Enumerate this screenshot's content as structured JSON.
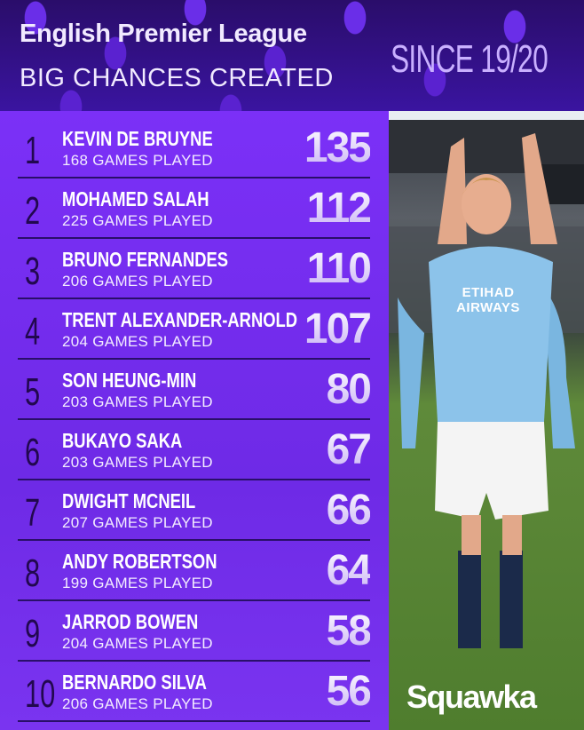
{
  "header": {
    "title": "English Premier League",
    "subtitle": "BIG CHANCES CREATED",
    "since": "SINCE 19/20"
  },
  "rows": [
    {
      "rank": "1",
      "name": "KEVIN DE BRUYNE",
      "games": "168 GAMES PLAYED",
      "value": "135"
    },
    {
      "rank": "2",
      "name": "MOHAMED SALAH",
      "games": "225 GAMES PLAYED",
      "value": "112"
    },
    {
      "rank": "3",
      "name": "BRUNO FERNANDES",
      "games": "206 GAMES PLAYED",
      "value": "110"
    },
    {
      "rank": "4",
      "name": "TRENT ALEXANDER-ARNOLD",
      "games": "204 GAMES PLAYED",
      "value": "107"
    },
    {
      "rank": "5",
      "name": "SON HEUNG-MIN",
      "games": "203 GAMES PLAYED",
      "value": "80"
    },
    {
      "rank": "6",
      "name": "BUKAYO SAKA",
      "games": "203 GAMES PLAYED",
      "value": "67"
    },
    {
      "rank": "7",
      "name": "DWIGHT MCNEIL",
      "games": "207 GAMES PLAYED",
      "value": "66"
    },
    {
      "rank": "8",
      "name": "ANDY ROBERTSON",
      "games": "199 GAMES PLAYED",
      "value": "64"
    },
    {
      "rank": "9",
      "name": "JARROD BOWEN",
      "games": "204 GAMES PLAYED",
      "value": "58"
    },
    {
      "rank": "10",
      "name": "BERNARDO SILVA",
      "games": "206 GAMES PLAYED",
      "value": "56"
    }
  ],
  "photo": {
    "subject": "player celebrating in sky blue kit",
    "shirt_text": "ETIHAD AIRWAYS"
  },
  "brand": {
    "logo": "Squawka"
  },
  "colors": {
    "panel": "#7b30f7",
    "header": "#2a0d6a",
    "accent": "#c9b0ff"
  }
}
